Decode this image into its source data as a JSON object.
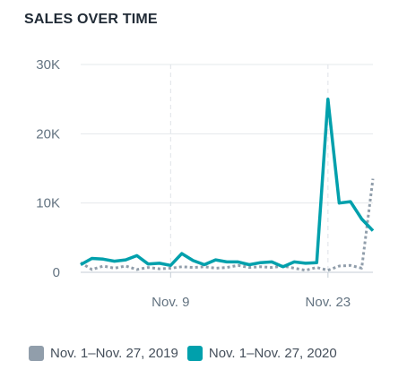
{
  "title": "SALES OVER TIME",
  "chart_data": {
    "type": "line",
    "title": "SALES OVER TIME",
    "xlabel": "",
    "ylabel": "",
    "ylim": [
      0,
      30000
    ],
    "yticks": [
      0,
      10000,
      20000,
      30000
    ],
    "ytick_labels": [
      "0",
      "10K",
      "20K",
      "30K"
    ],
    "xtick_labels": [
      {
        "day": 9,
        "label": "Nov. 9"
      },
      {
        "day": 23,
        "label": "Nov. 23"
      }
    ],
    "grid": {
      "horizontal": true,
      "vertical_at_ticks": true,
      "vertical_style": "dashed"
    },
    "legend_position": "bottom",
    "x": [
      1,
      2,
      3,
      4,
      5,
      6,
      7,
      8,
      9,
      10,
      11,
      12,
      13,
      14,
      15,
      16,
      17,
      18,
      19,
      20,
      21,
      22,
      23,
      24,
      25,
      26,
      27
    ],
    "series": [
      {
        "name": "Nov. 1–Nov. 27, 2019",
        "color": "#919eab",
        "style": "dotted",
        "values": [
          1400,
          400,
          900,
          600,
          900,
          400,
          700,
          500,
          600,
          800,
          700,
          800,
          600,
          700,
          1000,
          700,
          800,
          700,
          900,
          600,
          300,
          700,
          300,
          900,
          1000,
          600,
          13500
        ]
      },
      {
        "name": "Nov. 1–Nov. 27, 2020",
        "color": "#00a0ac",
        "style": "solid",
        "values": [
          1100,
          2000,
          1900,
          1600,
          1800,
          2400,
          1200,
          1300,
          1000,
          2700,
          1700,
          1100,
          1800,
          1500,
          1500,
          1100,
          1400,
          1500,
          800,
          1500,
          1300,
          1400,
          25000,
          10000,
          10200,
          7700,
          6000
        ]
      }
    ]
  }
}
